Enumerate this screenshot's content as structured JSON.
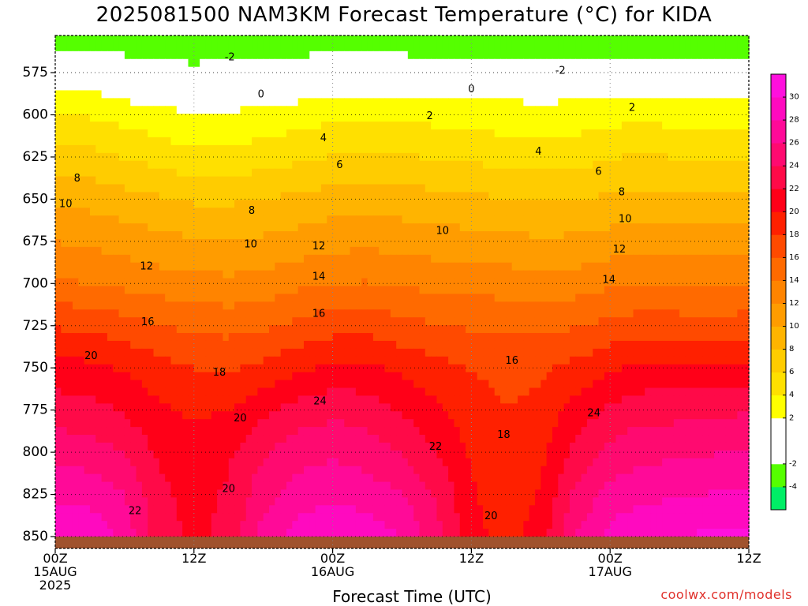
{
  "title": "2025081500 NAM3KM Forecast Temperature (°C) for KIDA",
  "credit": "coolwx.com/models",
  "chart_data": {
    "type": "heatmap",
    "subtype": "time-height filled contour",
    "title": "2025081500 NAM3KM Forecast Temperature (°C) for KIDA",
    "xlabel": "Forecast Time (UTC)",
    "ylabel": "",
    "x_ticks": [
      {
        "hour": 0,
        "lines": [
          "00Z",
          "15AUG",
          "2025"
        ]
      },
      {
        "hour": 12,
        "lines": [
          "12Z"
        ]
      },
      {
        "hour": 24,
        "lines": [
          "00Z",
          "16AUG"
        ]
      },
      {
        "hour": 36,
        "lines": [
          "12Z"
        ]
      },
      {
        "hour": 48,
        "lines": [
          "00Z",
          "17AUG"
        ]
      },
      {
        "hour": 60,
        "lines": [
          "12Z"
        ]
      }
    ],
    "xlim": [
      0,
      60
    ],
    "y_ticks": [
      575,
      600,
      625,
      650,
      675,
      700,
      725,
      750,
      775,
      800,
      825,
      850
    ],
    "ylim": [
      553,
      857
    ],
    "y_unit": "hPa",
    "grid": "dotted",
    "surface_pressure_hPa": 850,
    "colorbar": {
      "levels": [
        -6,
        -4,
        -2,
        0,
        2,
        4,
        6,
        8,
        10,
        12,
        14,
        16,
        18,
        20,
        22,
        24,
        26,
        28,
        30,
        32
      ],
      "labels": [
        "-4",
        "-2",
        "2",
        "4",
        "6",
        "8",
        "10",
        "12",
        "14",
        "16",
        "18",
        "20",
        "22",
        "24",
        "26",
        "28",
        "30"
      ],
      "label_values": [
        -4,
        -2,
        2,
        4,
        6,
        8,
        10,
        12,
        14,
        16,
        18,
        20,
        22,
        24,
        26,
        28,
        30
      ],
      "colors": [
        "#00ee66",
        "#55ff00",
        "#ffffff",
        "#ffffff",
        "#ffff00",
        "#ffe000",
        "#ffcc00",
        "#ffb400",
        "#ff9c00",
        "#ff8400",
        "#ff6a00",
        "#ff4a00",
        "#ff2000",
        "#ff0018",
        "#ff0a48",
        "#ff0a70",
        "#ff0a98",
        "#ff0abf",
        "#ff10dd"
      ],
      "surface_color": "#a0522d"
    },
    "temperature_profile": {
      "hours": [
        0,
        3,
        6,
        9,
        12,
        15,
        18,
        21,
        24,
        27,
        30,
        33,
        36,
        39,
        42,
        45,
        48,
        51,
        54,
        57,
        60
      ],
      "pressure_levels": [
        560,
        575,
        590,
        600,
        625,
        650,
        675,
        700,
        725,
        750,
        775,
        800,
        825,
        850
      ],
      "values": [
        [
          -2.3,
          -2.3,
          -2.8,
          -3.3,
          -3.5,
          -3.3,
          -3.0,
          -2.8,
          -2.5,
          -2.5,
          -2.7,
          -2.9,
          -3.1,
          -3.0,
          -2.8,
          -2.7,
          -2.8,
          -3.0,
          -3.1,
          -3.0,
          -3.0
        ],
        [
          0.5,
          0.3,
          -0.3,
          -0.9,
          -1.1,
          -1.0,
          -0.6,
          -0.5,
          -0.2,
          -0.1,
          -0.3,
          -0.5,
          -0.8,
          -0.8,
          -0.6,
          -0.5,
          -0.5,
          -0.6,
          -0.8,
          -0.9,
          -0.9
        ],
        [
          3.0,
          2.6,
          1.8,
          1.2,
          0.9,
          0.9,
          1.3,
          1.7,
          2.1,
          2.3,
          2.0,
          1.9,
          1.8,
          1.8,
          1.7,
          1.8,
          2.1,
          2.2,
          2.0,
          1.8,
          1.8
        ],
        [
          4.1,
          3.8,
          3.2,
          2.6,
          2.2,
          2.3,
          2.6,
          3.0,
          3.5,
          3.7,
          3.5,
          3.3,
          3.1,
          2.9,
          2.7,
          2.9,
          3.3,
          3.4,
          3.2,
          3.1,
          3.0
        ],
        [
          7.0,
          6.6,
          5.9,
          5.2,
          4.5,
          4.6,
          5.0,
          5.6,
          6.1,
          6.3,
          6.1,
          5.9,
          5.6,
          5.2,
          5.0,
          5.2,
          5.9,
          6.2,
          5.9,
          5.7,
          5.7
        ],
        [
          9.6,
          9.3,
          8.8,
          8.2,
          7.7,
          7.7,
          8.0,
          8.5,
          8.9,
          9.1,
          8.9,
          8.6,
          8.4,
          8.0,
          7.8,
          7.9,
          8.3,
          8.5,
          8.4,
          8.3,
          8.2
        ],
        [
          12.0,
          11.6,
          11.1,
          10.6,
          10.2,
          10.1,
          10.3,
          10.8,
          11.3,
          11.5,
          11.2,
          10.9,
          10.7,
          10.5,
          10.3,
          10.4,
          10.9,
          11.2,
          11.1,
          11.0,
          10.9
        ],
        [
          14.3,
          14.0,
          13.5,
          13.0,
          12.6,
          12.5,
          12.8,
          13.5,
          14.0,
          14.1,
          13.8,
          13.4,
          13.3,
          13.1,
          12.9,
          13.0,
          13.6,
          13.9,
          13.8,
          13.7,
          13.6
        ],
        [
          17.8,
          17.5,
          16.9,
          16.1,
          15.5,
          15.3,
          15.7,
          16.5,
          17.2,
          17.2,
          16.6,
          16.1,
          15.8,
          15.6,
          15.6,
          15.8,
          16.6,
          17.1,
          16.9,
          16.9,
          17.0
        ],
        [
          20.8,
          20.5,
          19.8,
          18.7,
          18.0,
          17.8,
          18.5,
          19.5,
          20.4,
          20.5,
          19.5,
          18.6,
          17.9,
          17.3,
          17.6,
          18.6,
          19.7,
          20.4,
          20.3,
          20.4,
          20.6
        ],
        [
          23.0,
          22.7,
          21.8,
          20.3,
          19.7,
          20.0,
          21.4,
          22.8,
          23.5,
          23.0,
          21.8,
          20.4,
          19.0,
          18.0,
          18.6,
          20.7,
          22.5,
          23.3,
          23.3,
          23.5,
          23.8
        ],
        [
          25.2,
          25.0,
          23.8,
          21.6,
          20.6,
          21.7,
          23.8,
          25.2,
          25.6,
          25.0,
          23.8,
          22.0,
          19.7,
          18.4,
          19.5,
          22.5,
          24.6,
          25.4,
          25.6,
          25.9,
          26.2
        ],
        [
          27.5,
          27.3,
          26.0,
          22.5,
          21.2,
          22.3,
          25.2,
          27.0,
          27.5,
          27.1,
          26.0,
          23.8,
          20.3,
          18.7,
          20.2,
          24.4,
          26.7,
          27.5,
          27.8,
          28.1,
          28.3
        ],
        [
          30.2,
          29.6,
          27.2,
          23.0,
          21.5,
          22.6,
          26.8,
          28.9,
          29.9,
          29.3,
          28.0,
          24.7,
          20.8,
          19.2,
          21.0,
          26.0,
          28.8,
          29.7,
          30.1,
          30.3,
          30.5
        ]
      ]
    },
    "contour_labels": [
      {
        "text": "-2",
        "hour": 15.1,
        "pressure": 566
      },
      {
        "text": "-2",
        "hour": 43.7,
        "pressure": 574
      },
      {
        "text": "0",
        "hour": 17.8,
        "pressure": 588
      },
      {
        "text": "0",
        "hour": 36.0,
        "pressure": 585
      },
      {
        "text": "2",
        "hour": 32.4,
        "pressure": 601
      },
      {
        "text": "2",
        "hour": 49.9,
        "pressure": 596
      },
      {
        "text": "4",
        "hour": 23.2,
        "pressure": 614
      },
      {
        "text": "4",
        "hour": 41.8,
        "pressure": 622
      },
      {
        "text": "6",
        "hour": 24.6,
        "pressure": 630
      },
      {
        "text": "6",
        "hour": 47.0,
        "pressure": 634
      },
      {
        "text": "8",
        "hour": 1.9,
        "pressure": 638
      },
      {
        "text": "8",
        "hour": 17.0,
        "pressure": 657
      },
      {
        "text": "8",
        "hour": 49.0,
        "pressure": 646
      },
      {
        "text": "10",
        "hour": 0.9,
        "pressure": 653
      },
      {
        "text": "10",
        "hour": 16.9,
        "pressure": 677
      },
      {
        "text": "10",
        "hour": 33.5,
        "pressure": 669
      },
      {
        "text": "10",
        "hour": 49.3,
        "pressure": 662
      },
      {
        "text": "12",
        "hour": 7.9,
        "pressure": 690
      },
      {
        "text": "12",
        "hour": 22.8,
        "pressure": 678
      },
      {
        "text": "12",
        "hour": 48.8,
        "pressure": 680
      },
      {
        "text": "14",
        "hour": 22.8,
        "pressure": 696
      },
      {
        "text": "14",
        "hour": 47.9,
        "pressure": 698
      },
      {
        "text": "16",
        "hour": 8.0,
        "pressure": 723
      },
      {
        "text": "16",
        "hour": 22.8,
        "pressure": 718
      },
      {
        "text": "16",
        "hour": 39.5,
        "pressure": 746
      },
      {
        "text": "18",
        "hour": 14.2,
        "pressure": 753
      },
      {
        "text": "18",
        "hour": 38.8,
        "pressure": 790
      },
      {
        "text": "20",
        "hour": 3.1,
        "pressure": 743
      },
      {
        "text": "20",
        "hour": 16.0,
        "pressure": 780
      },
      {
        "text": "20",
        "hour": 15.0,
        "pressure": 822
      },
      {
        "text": "20",
        "hour": 37.7,
        "pressure": 838
      },
      {
        "text": "22",
        "hour": 6.9,
        "pressure": 835
      },
      {
        "text": "22",
        "hour": 32.9,
        "pressure": 797
      },
      {
        "text": "24",
        "hour": 22.9,
        "pressure": 770
      },
      {
        "text": "24",
        "hour": 46.6,
        "pressure": 777
      }
    ]
  }
}
